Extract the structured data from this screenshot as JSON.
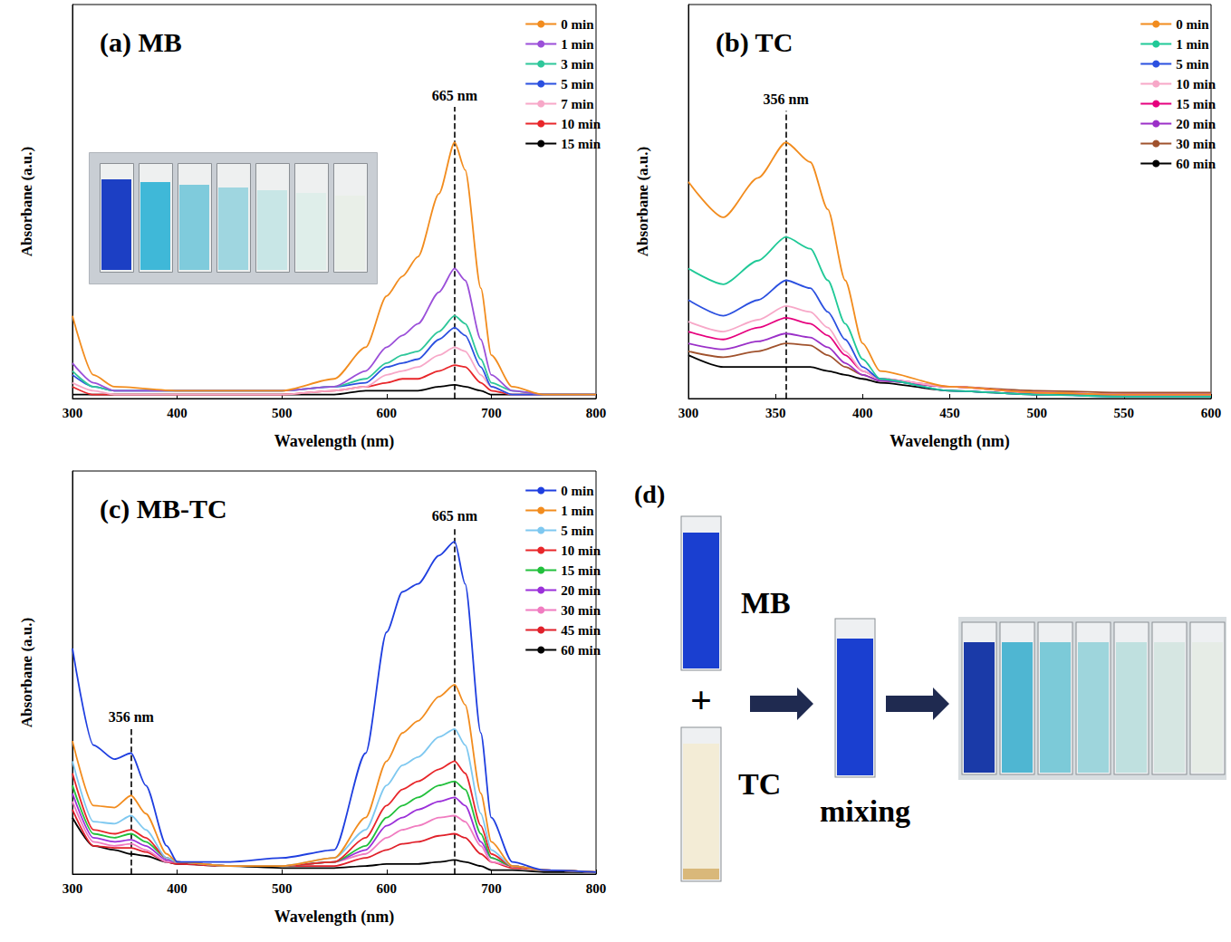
{
  "chart_data": [
    {
      "type": "line",
      "title": "(a) MB",
      "x_label": "Wavelength (nm)",
      "y_label": "Absorbane (a.u.)",
      "xlim": [
        300,
        800
      ],
      "xticks": [
        300,
        400,
        500,
        600,
        700,
        800
      ],
      "ylim": [
        0,
        1
      ],
      "tick_labels": "x",
      "grid": false,
      "legend": "upper right",
      "annotations": [
        {
          "text": "665 nm",
          "x": 665,
          "y": 0.74
        }
      ],
      "x": [
        300,
        320,
        340,
        400,
        500,
        550,
        580,
        600,
        615,
        630,
        650,
        665,
        675,
        690,
        700,
        720,
        750,
        800
      ],
      "series": [
        {
          "name": "0 min",
          "color": "#f28c1e",
          "values": [
            0.21,
            0.06,
            0.03,
            0.02,
            0.02,
            0.05,
            0.13,
            0.26,
            0.31,
            0.36,
            0.52,
            0.65,
            0.58,
            0.28,
            0.11,
            0.03,
            0.01,
            0.01
          ]
        },
        {
          "name": "1 min",
          "color": "#9b4fd9",
          "values": [
            0.09,
            0.04,
            0.02,
            0.02,
            0.02,
            0.03,
            0.07,
            0.13,
            0.16,
            0.19,
            0.27,
            0.33,
            0.3,
            0.15,
            0.06,
            0.02,
            0.01,
            0.01
          ]
        },
        {
          "name": "3 min",
          "color": "#2ec79a",
          "values": [
            0.07,
            0.03,
            0.02,
            0.02,
            0.02,
            0.03,
            0.05,
            0.09,
            0.11,
            0.12,
            0.17,
            0.21,
            0.19,
            0.1,
            0.04,
            0.02,
            0.01,
            0.01
          ]
        },
        {
          "name": "5 min",
          "color": "#2b50e0",
          "values": [
            0.06,
            0.03,
            0.02,
            0.02,
            0.02,
            0.03,
            0.04,
            0.08,
            0.09,
            0.1,
            0.15,
            0.18,
            0.16,
            0.08,
            0.03,
            0.01,
            0.01,
            0.01
          ]
        },
        {
          "name": "7 min",
          "color": "#f7a8c8",
          "values": [
            0.04,
            0.02,
            0.01,
            0.01,
            0.01,
            0.02,
            0.03,
            0.06,
            0.07,
            0.08,
            0.11,
            0.13,
            0.12,
            0.06,
            0.03,
            0.01,
            0.01,
            0.01
          ]
        },
        {
          "name": "10 min",
          "color": "#e8262a",
          "values": [
            0.03,
            0.01,
            0.01,
            0.01,
            0.01,
            0.02,
            0.03,
            0.04,
            0.05,
            0.05,
            0.07,
            0.085,
            0.08,
            0.04,
            0.02,
            0.01,
            0.01,
            0.01
          ]
        },
        {
          "name": "15 min",
          "color": "#000000",
          "values": [
            0.01,
            0.01,
            0.01,
            0.01,
            0.01,
            0.01,
            0.02,
            0.02,
            0.02,
            0.02,
            0.03,
            0.035,
            0.03,
            0.02,
            0.01,
            0.01,
            0.01,
            0.01
          ]
        }
      ]
    },
    {
      "type": "line",
      "title": "(b) TC",
      "x_label": "Wavelength (nm)",
      "y_label": "Absorbane (a.u.)",
      "xlim": [
        300,
        600
      ],
      "xticks": [
        300,
        350,
        400,
        450,
        500,
        550,
        600
      ],
      "ylim": [
        0,
        1
      ],
      "tick_labels": "x",
      "grid": false,
      "legend": "upper right",
      "annotations": [
        {
          "text": "356 nm",
          "x": 356,
          "y": 0.73
        }
      ],
      "x": [
        300,
        320,
        340,
        356,
        370,
        380,
        390,
        400,
        410,
        450,
        500,
        550,
        600
      ],
      "series": [
        {
          "name": "0 min",
          "color": "#f28c1e",
          "values": [
            0.55,
            0.46,
            0.56,
            0.65,
            0.6,
            0.48,
            0.3,
            0.14,
            0.07,
            0.03,
            0.015,
            0.01,
            0.01
          ]
        },
        {
          "name": "1 min",
          "color": "#20c997",
          "values": [
            0.33,
            0.29,
            0.35,
            0.41,
            0.38,
            0.3,
            0.19,
            0.1,
            0.05,
            0.02,
            0.01,
            0.005,
            0.005
          ]
        },
        {
          "name": "5 min",
          "color": "#2b50e0",
          "values": [
            0.25,
            0.21,
            0.25,
            0.3,
            0.28,
            0.22,
            0.15,
            0.08,
            0.05,
            0.02,
            0.01,
            0.005,
            0.005
          ]
        },
        {
          "name": "10 min",
          "color": "#f7a8c8",
          "values": [
            0.195,
            0.17,
            0.2,
            0.235,
            0.22,
            0.18,
            0.12,
            0.07,
            0.05,
            0.03,
            0.015,
            0.01,
            0.01
          ]
        },
        {
          "name": "15 min",
          "color": "#e6007e",
          "values": [
            0.17,
            0.15,
            0.18,
            0.205,
            0.19,
            0.16,
            0.11,
            0.07,
            0.05,
            0.03,
            0.015,
            0.01,
            0.01
          ]
        },
        {
          "name": "20 min",
          "color": "#9b30c8",
          "values": [
            0.14,
            0.125,
            0.145,
            0.165,
            0.155,
            0.13,
            0.09,
            0.06,
            0.045,
            0.03,
            0.015,
            0.01,
            0.01
          ]
        },
        {
          "name": "30 min",
          "color": "#a0522d",
          "values": [
            0.12,
            0.105,
            0.12,
            0.14,
            0.135,
            0.11,
            0.08,
            0.06,
            0.045,
            0.03,
            0.02,
            0.015,
            0.015
          ]
        },
        {
          "name": "60 min",
          "color": "#000000",
          "values": [
            0.11,
            0.08,
            0.08,
            0.08,
            0.08,
            0.07,
            0.06,
            0.05,
            0.04,
            0.02,
            0.01,
            0.01,
            0.01
          ]
        }
      ]
    },
    {
      "type": "line",
      "title": "(c) MB-TC",
      "x_label": "Wavelength (nm)",
      "y_label": "Absorbane (a.u.)",
      "xlim": [
        300,
        800
      ],
      "xticks": [
        300,
        400,
        500,
        600,
        700,
        800
      ],
      "ylim": [
        0,
        1
      ],
      "tick_labels": "x",
      "grid": false,
      "legend": "upper right",
      "annotations": [
        {
          "text": "356 nm",
          "x": 356,
          "y": 0.36
        },
        {
          "text": "665 nm",
          "x": 665,
          "y": 0.86
        }
      ],
      "x": [
        300,
        320,
        340,
        356,
        370,
        390,
        400,
        450,
        500,
        550,
        580,
        600,
        615,
        630,
        650,
        665,
        675,
        690,
        700,
        720,
        750,
        800
      ],
      "series": [
        {
          "name": "0 min",
          "color": "#1f3fe0",
          "values": [
            0.56,
            0.32,
            0.285,
            0.3,
            0.22,
            0.07,
            0.03,
            0.03,
            0.04,
            0.06,
            0.3,
            0.6,
            0.7,
            0.72,
            0.79,
            0.825,
            0.72,
            0.35,
            0.14,
            0.03,
            0.01,
            0.005
          ]
        },
        {
          "name": "1 min",
          "color": "#f28c1e",
          "values": [
            0.33,
            0.17,
            0.165,
            0.195,
            0.15,
            0.05,
            0.03,
            0.02,
            0.02,
            0.04,
            0.14,
            0.28,
            0.35,
            0.38,
            0.44,
            0.47,
            0.42,
            0.2,
            0.08,
            0.02,
            0.01,
            0.005
          ]
        },
        {
          "name": "5 min",
          "color": "#7ec8f0",
          "values": [
            0.28,
            0.13,
            0.125,
            0.145,
            0.11,
            0.04,
            0.03,
            0.02,
            0.02,
            0.04,
            0.11,
            0.22,
            0.27,
            0.29,
            0.34,
            0.36,
            0.32,
            0.15,
            0.06,
            0.02,
            0.01,
            0.005
          ]
        },
        {
          "name": "10 min",
          "color": "#e8262a",
          "values": [
            0.25,
            0.11,
            0.1,
            0.11,
            0.09,
            0.04,
            0.03,
            0.02,
            0.02,
            0.03,
            0.09,
            0.17,
            0.21,
            0.23,
            0.26,
            0.28,
            0.25,
            0.12,
            0.05,
            0.02,
            0.01,
            0.005
          ]
        },
        {
          "name": "15 min",
          "color": "#22c03c",
          "values": [
            0.22,
            0.1,
            0.09,
            0.1,
            0.08,
            0.04,
            0.03,
            0.02,
            0.02,
            0.03,
            0.07,
            0.14,
            0.17,
            0.19,
            0.22,
            0.23,
            0.21,
            0.1,
            0.04,
            0.02,
            0.01,
            0.005
          ]
        },
        {
          "name": "20 min",
          "color": "#9b30d9",
          "values": [
            0.2,
            0.09,
            0.08,
            0.085,
            0.07,
            0.035,
            0.03,
            0.02,
            0.02,
            0.03,
            0.06,
            0.12,
            0.14,
            0.16,
            0.18,
            0.19,
            0.17,
            0.08,
            0.04,
            0.02,
            0.01,
            0.005
          ]
        },
        {
          "name": "30 min",
          "color": "#f07cc0",
          "values": [
            0.18,
            0.08,
            0.07,
            0.075,
            0.06,
            0.03,
            0.03,
            0.02,
            0.02,
            0.03,
            0.05,
            0.09,
            0.11,
            0.12,
            0.14,
            0.145,
            0.13,
            0.07,
            0.03,
            0.02,
            0.01,
            0.005
          ]
        },
        {
          "name": "45 min",
          "color": "#e0202a",
          "values": [
            0.16,
            0.07,
            0.065,
            0.065,
            0.055,
            0.03,
            0.025,
            0.02,
            0.02,
            0.02,
            0.04,
            0.06,
            0.075,
            0.08,
            0.095,
            0.1,
            0.09,
            0.05,
            0.03,
            0.015,
            0.01,
            0.005
          ]
        },
        {
          "name": "60 min",
          "color": "#000000",
          "values": [
            0.14,
            0.07,
            0.06,
            0.05,
            0.045,
            0.03,
            0.025,
            0.02,
            0.015,
            0.015,
            0.02,
            0.025,
            0.025,
            0.025,
            0.03,
            0.035,
            0.03,
            0.02,
            0.01,
            0.01,
            0.005,
            0.005
          ]
        }
      ]
    }
  ],
  "panel_d": {
    "letter": "(d)",
    "top_label": "MB",
    "plus": "+",
    "bottom_label": "TC",
    "arrow_label": "mixing"
  }
}
